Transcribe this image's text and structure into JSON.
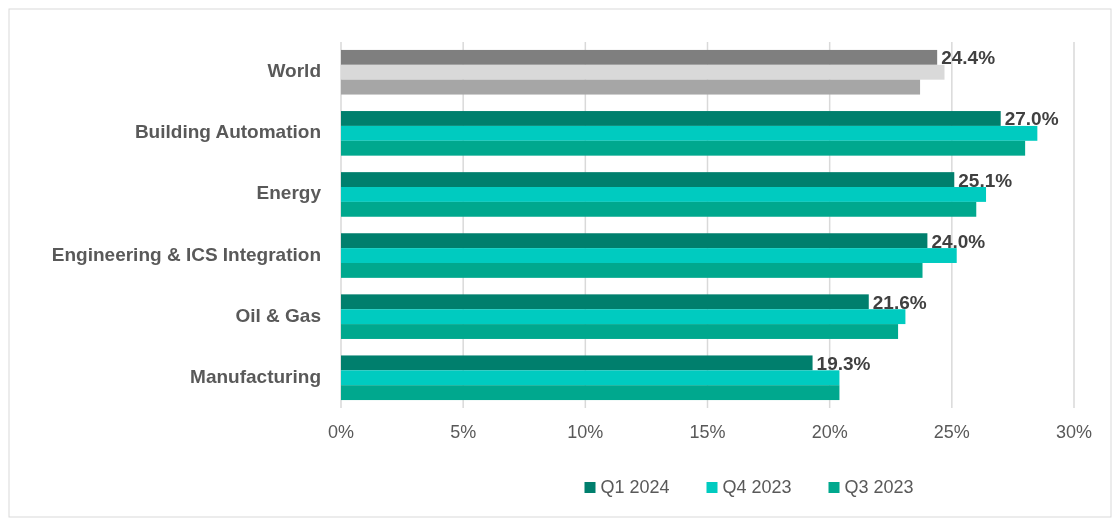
{
  "chart_data": {
    "type": "bar",
    "orientation": "horizontal",
    "categories": [
      "World",
      "Building Automation",
      "Energy",
      "Engineering & ICS Integration",
      "Oil & Gas",
      "Manufacturing"
    ],
    "series": [
      {
        "name": "Q1 2024",
        "color": "#007f6d",
        "colors": [
          "#7f7f7f",
          "#007f6d",
          "#007f6d",
          "#007f6d",
          "#007f6d",
          "#007f6d"
        ],
        "values": [
          24.4,
          27.0,
          25.1,
          24.0,
          21.6,
          19.3
        ],
        "value_labels": [
          "24.4%",
          "27.0%",
          "25.1%",
          "24.0%",
          "21.6%",
          "19.3%"
        ]
      },
      {
        "name": "Q4 2023",
        "color": "#00cbc0",
        "colors": [
          "#d9d9d9",
          "#00cbc0",
          "#00cbc0",
          "#00cbc0",
          "#00cbc0",
          "#00cbc0"
        ],
        "values": [
          24.7,
          28.5,
          26.4,
          25.2,
          23.1,
          20.4
        ]
      },
      {
        "name": "Q3 2023",
        "color": "#00a88e",
        "colors": [
          "#a6a6a6",
          "#00a88e",
          "#00a88e",
          "#00a88e",
          "#00a88e",
          "#00a88e"
        ],
        "values": [
          23.7,
          28.0,
          26.0,
          23.8,
          22.8,
          20.4
        ]
      }
    ],
    "xlim": [
      0,
      30
    ],
    "xticks": [
      {
        "value": 0,
        "label": "0%"
      },
      {
        "value": 5,
        "label": "5%"
      },
      {
        "value": 10,
        "label": "10%"
      },
      {
        "value": 15,
        "label": "15%"
      },
      {
        "value": 20,
        "label": "20%"
      },
      {
        "value": 25,
        "label": "25%"
      },
      {
        "value": 30,
        "label": "30%"
      }
    ],
    "grid": "x",
    "legend": "bottom"
  }
}
